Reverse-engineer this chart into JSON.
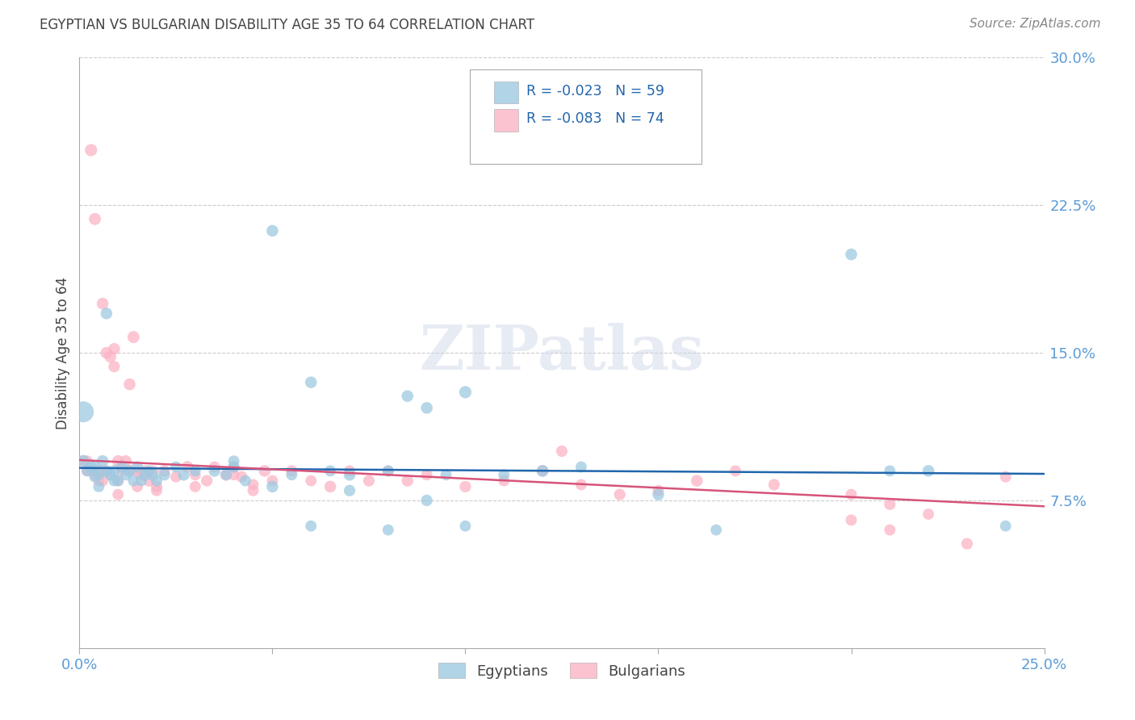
{
  "title": "EGYPTIAN VS BULGARIAN DISABILITY AGE 35 TO 64 CORRELATION CHART",
  "source": "Source: ZipAtlas.com",
  "ylabel": "Disability Age 35 to 64",
  "xmin": 0.0,
  "xmax": 0.25,
  "ymin": 0.0,
  "ymax": 0.3,
  "yticks": [
    0.075,
    0.15,
    0.225,
    0.3
  ],
  "ytick_labels": [
    "7.5%",
    "15.0%",
    "22.5%",
    "30.0%"
  ],
  "title_color": "#444444",
  "source_color": "#888888",
  "ylabel_color": "#444444",
  "ytick_color": "#5b9bd5",
  "xtick_color": "#5b9bd5",
  "watermark_text": "ZIPatlas",
  "legend_r1": "R = -0.023",
  "legend_n1": "N = 59",
  "legend_r2": "R = -0.083",
  "legend_n2": "N = 74",
  "blue_color": "#9ecae1",
  "pink_color": "#fbb4c5",
  "line_blue": "#2166ac",
  "line_pink": "#d6537a",
  "legend_text_color": "#2166ac",
  "blue_line_y_start": 0.0915,
  "blue_line_y_end": 0.0885,
  "pink_line_y_start": 0.0955,
  "pink_line_y_end": 0.072,
  "eg_x": [
    0.001,
    0.001,
    0.002,
    0.003,
    0.004,
    0.004,
    0.005,
    0.005,
    0.006,
    0.007,
    0.007,
    0.008,
    0.009,
    0.009,
    0.01,
    0.011,
    0.012,
    0.013,
    0.014,
    0.015,
    0.016,
    0.017,
    0.018,
    0.019,
    0.02,
    0.022,
    0.025,
    0.027,
    0.03,
    0.035,
    0.038,
    0.04,
    0.043,
    0.05,
    0.055,
    0.06,
    0.065,
    0.07,
    0.08,
    0.085,
    0.09,
    0.095,
    0.1,
    0.11,
    0.12,
    0.13,
    0.15,
    0.165,
    0.2,
    0.21,
    0.04,
    0.05,
    0.06,
    0.07,
    0.08,
    0.09,
    0.1,
    0.22,
    0.24
  ],
  "eg_y": [
    0.12,
    0.095,
    0.09,
    0.092,
    0.087,
    0.092,
    0.088,
    0.082,
    0.095,
    0.17,
    0.09,
    0.088,
    0.085,
    0.09,
    0.085,
    0.092,
    0.088,
    0.09,
    0.085,
    0.092,
    0.085,
    0.088,
    0.09,
    0.088,
    0.085,
    0.088,
    0.092,
    0.088,
    0.09,
    0.09,
    0.088,
    0.092,
    0.085,
    0.082,
    0.088,
    0.135,
    0.09,
    0.088,
    0.09,
    0.128,
    0.122,
    0.088,
    0.13,
    0.088,
    0.09,
    0.092,
    0.078,
    0.06,
    0.2,
    0.09,
    0.095,
    0.212,
    0.062,
    0.08,
    0.06,
    0.075,
    0.062,
    0.09,
    0.062
  ],
  "eg_sz": [
    350,
    120,
    100,
    110,
    100,
    110,
    105,
    100,
    110,
    110,
    100,
    105,
    100,
    110,
    100,
    105,
    100,
    110,
    100,
    105,
    100,
    105,
    100,
    110,
    100,
    105,
    100,
    110,
    100,
    110,
    100,
    105,
    100,
    110,
    100,
    110,
    100,
    110,
    100,
    110,
    110,
    100,
    120,
    100,
    110,
    100,
    110,
    100,
    110,
    100,
    100,
    110,
    100,
    105,
    100,
    105,
    100,
    110,
    100
  ],
  "bg_x": [
    0.001,
    0.002,
    0.002,
    0.003,
    0.003,
    0.004,
    0.004,
    0.005,
    0.005,
    0.006,
    0.006,
    0.006,
    0.007,
    0.007,
    0.008,
    0.008,
    0.009,
    0.009,
    0.01,
    0.01,
    0.011,
    0.012,
    0.013,
    0.013,
    0.014,
    0.015,
    0.016,
    0.017,
    0.018,
    0.019,
    0.02,
    0.022,
    0.025,
    0.028,
    0.03,
    0.033,
    0.035,
    0.038,
    0.04,
    0.042,
    0.045,
    0.048,
    0.05,
    0.055,
    0.06,
    0.065,
    0.07,
    0.075,
    0.08,
    0.085,
    0.09,
    0.1,
    0.11,
    0.12,
    0.13,
    0.14,
    0.15,
    0.16,
    0.17,
    0.18,
    0.2,
    0.21,
    0.22,
    0.23,
    0.24,
    0.125,
    0.2,
    0.21,
    0.01,
    0.015,
    0.02,
    0.03,
    0.04,
    0.045
  ],
  "bg_y": [
    0.095,
    0.09,
    0.095,
    0.253,
    0.09,
    0.218,
    0.088,
    0.09,
    0.085,
    0.175,
    0.09,
    0.085,
    0.15,
    0.09,
    0.148,
    0.088,
    0.152,
    0.143,
    0.095,
    0.085,
    0.09,
    0.095,
    0.09,
    0.134,
    0.158,
    0.09,
    0.088,
    0.09,
    0.085,
    0.09,
    0.082,
    0.09,
    0.087,
    0.092,
    0.088,
    0.085,
    0.092,
    0.088,
    0.092,
    0.087,
    0.083,
    0.09,
    0.085,
    0.09,
    0.085,
    0.082,
    0.09,
    0.085,
    0.09,
    0.085,
    0.088,
    0.082,
    0.085,
    0.09,
    0.083,
    0.078,
    0.08,
    0.085,
    0.09,
    0.083,
    0.078,
    0.073,
    0.068,
    0.053,
    0.087,
    0.1,
    0.065,
    0.06,
    0.078,
    0.082,
    0.08,
    0.082,
    0.088,
    0.08
  ],
  "bg_sz": [
    100,
    95,
    100,
    120,
    100,
    115,
    100,
    105,
    100,
    110,
    100,
    100,
    110,
    100,
    110,
    100,
    110,
    105,
    110,
    100,
    105,
    110,
    100,
    110,
    115,
    100,
    105,
    100,
    110,
    100,
    105,
    110,
    100,
    110,
    100,
    105,
    100,
    110,
    100,
    105,
    100,
    110,
    100,
    105,
    100,
    110,
    100,
    105,
    100,
    110,
    100,
    105,
    100,
    110,
    100,
    105,
    100,
    110,
    100,
    105,
    100,
    105,
    100,
    105,
    100,
    105,
    100,
    100,
    100,
    100,
    100,
    100,
    100,
    100
  ]
}
